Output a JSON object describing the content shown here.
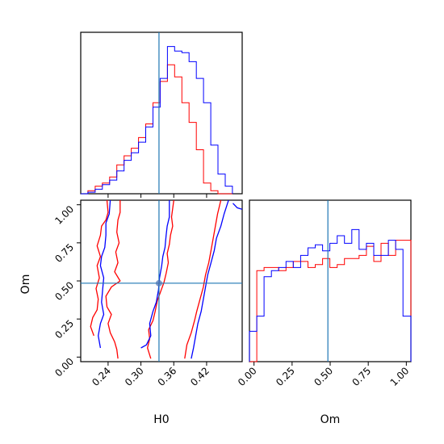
{
  "chart_data": {
    "type": "corner",
    "parameters": [
      "H0",
      "Om"
    ],
    "truth": {
      "H0": 0.333,
      "Om": 0.485
    },
    "colors": {
      "red_series": "#ff0000",
      "blue_series": "#0000ff",
      "truth_line": "#1f77b4",
      "marker": "#4c72b0"
    },
    "axes": {
      "H0": {
        "label": "H0",
        "range": [
          0.19,
          0.485
        ],
        "ticks": [
          0.24,
          0.3,
          0.36,
          0.42
        ],
        "tick_labels": [
          "0.24",
          "0.30",
          "0.36",
          "0.42"
        ]
      },
      "Om": {
        "label": "Om",
        "range": [
          -0.03,
          1.03
        ],
        "ticks": [
          0.0,
          0.25,
          0.5,
          0.75,
          1.0
        ],
        "tick_labels": [
          "0.00",
          "0.25",
          "0.50",
          "0.75",
          "1.00"
        ]
      }
    },
    "hist_H0": {
      "bin_edges": [
        0.19,
        0.2032,
        0.2164,
        0.2296,
        0.2428,
        0.256,
        0.2692,
        0.2824,
        0.2956,
        0.3088,
        0.322,
        0.3352,
        0.3484,
        0.3616,
        0.3748,
        0.388,
        0.4012,
        0.4144,
        0.4276,
        0.4408,
        0.454,
        0.4672
      ],
      "series": [
        {
          "color": "red",
          "counts": [
            0.0,
            0.02,
            0.05,
            0.07,
            0.11,
            0.19,
            0.25,
            0.3,
            0.37,
            0.46,
            0.6,
            0.74,
            0.85,
            0.77,
            0.6,
            0.47,
            0.29,
            0.07,
            0.02,
            0.0,
            0.0
          ]
        },
        {
          "color": "blue",
          "counts": [
            0.0,
            0.01,
            0.03,
            0.06,
            0.09,
            0.15,
            0.22,
            0.27,
            0.34,
            0.44,
            0.57,
            0.76,
            0.97,
            0.94,
            0.93,
            0.87,
            0.76,
            0.6,
            0.32,
            0.13,
            0.05
          ]
        }
      ]
    },
    "hist_Om": {
      "bin_edges": [
        -0.03,
        0.018,
        0.066,
        0.114,
        0.162,
        0.21,
        0.258,
        0.306,
        0.354,
        0.402,
        0.45,
        0.498,
        0.546,
        0.594,
        0.642,
        0.69,
        0.738,
        0.786,
        0.834,
        0.882,
        0.93,
        0.978,
        1.03
      ],
      "series": [
        {
          "color": "red",
          "counts": [
            0.0,
            0.6,
            0.62,
            0.62,
            0.6,
            0.62,
            0.66,
            0.66,
            0.62,
            0.64,
            0.68,
            0.62,
            0.64,
            0.68,
            0.68,
            0.7,
            0.76,
            0.66,
            0.78,
            0.7,
            0.8,
            0.8
          ]
        },
        {
          "color": "blue",
          "counts": [
            0.2,
            0.3,
            0.56,
            0.6,
            0.62,
            0.66,
            0.62,
            0.7,
            0.75,
            0.77,
            0.73,
            0.78,
            0.83,
            0.78,
            0.87,
            0.74,
            0.78,
            0.7,
            0.7,
            0.8,
            0.74,
            0.3
          ]
        }
      ]
    },
    "contours_H0_Om": {
      "red": [
        [
          [
            0.258,
            -0.01
          ],
          [
            0.256,
            0.05
          ],
          [
            0.252,
            0.1
          ],
          [
            0.244,
            0.16
          ],
          [
            0.24,
            0.22
          ],
          [
            0.246,
            0.28
          ],
          [
            0.238,
            0.33
          ],
          [
            0.236,
            0.4
          ],
          [
            0.246,
            0.46
          ],
          [
            0.262,
            0.5
          ],
          [
            0.252,
            0.56
          ],
          [
            0.258,
            0.62
          ],
          [
            0.254,
            0.69
          ],
          [
            0.26,
            0.75
          ],
          [
            0.256,
            0.82
          ],
          [
            0.258,
            0.9
          ],
          [
            0.262,
            0.95
          ],
          [
            0.262,
            1.03
          ]
        ],
        [
          [
            0.318,
            -0.01
          ],
          [
            0.312,
            0.06
          ],
          [
            0.316,
            0.12
          ],
          [
            0.314,
            0.18
          ],
          [
            0.322,
            0.24
          ],
          [
            0.326,
            0.3
          ],
          [
            0.33,
            0.37
          ],
          [
            0.336,
            0.43
          ],
          [
            0.342,
            0.49
          ],
          [
            0.346,
            0.55
          ],
          [
            0.35,
            0.62
          ],
          [
            0.348,
            0.68
          ],
          [
            0.352,
            0.74
          ],
          [
            0.354,
            0.8
          ],
          [
            0.358,
            0.86
          ],
          [
            0.356,
            0.92
          ],
          [
            0.36,
            1.03
          ]
        ],
        [
          [
            0.214,
            0.14
          ],
          [
            0.208,
            0.2
          ],
          [
            0.212,
            0.26
          ],
          [
            0.22,
            0.31
          ],
          [
            0.222,
            0.38
          ],
          [
            0.218,
            0.45
          ],
          [
            0.224,
            0.52
          ],
          [
            0.22,
            0.6
          ],
          [
            0.226,
            0.66
          ],
          [
            0.22,
            0.73
          ],
          [
            0.226,
            0.8
          ],
          [
            0.228,
            0.86
          ],
          [
            0.236,
            0.9
          ],
          [
            0.24,
            0.95
          ],
          [
            0.238,
            1.03
          ]
        ],
        [
          [
            0.38,
            -0.01
          ],
          [
            0.384,
            0.08
          ],
          [
            0.392,
            0.16
          ],
          [
            0.398,
            0.24
          ],
          [
            0.402,
            0.3
          ],
          [
            0.408,
            0.38
          ],
          [
            0.414,
            0.46
          ],
          [
            0.418,
            0.54
          ],
          [
            0.424,
            0.62
          ],
          [
            0.428,
            0.7
          ],
          [
            0.432,
            0.78
          ],
          [
            0.436,
            0.86
          ],
          [
            0.44,
            0.94
          ],
          [
            0.446,
            1.03
          ]
        ]
      ],
      "blue": [
        [
          [
            0.3,
            0.06
          ],
          [
            0.31,
            0.08
          ],
          [
            0.318,
            0.14
          ],
          [
            0.316,
            0.22
          ],
          [
            0.322,
            0.3
          ],
          [
            0.328,
            0.36
          ],
          [
            0.332,
            0.44
          ],
          [
            0.334,
            0.52
          ],
          [
            0.338,
            0.6
          ],
          [
            0.34,
            0.66
          ],
          [
            0.344,
            0.72
          ],
          [
            0.346,
            0.8
          ],
          [
            0.348,
            0.86
          ],
          [
            0.352,
            0.92
          ],
          [
            0.352,
            1.03
          ]
        ],
        [
          [
            0.392,
            -0.01
          ],
          [
            0.396,
            0.06
          ],
          [
            0.4,
            0.14
          ],
          [
            0.404,
            0.22
          ],
          [
            0.41,
            0.3
          ],
          [
            0.414,
            0.38
          ],
          [
            0.418,
            0.46
          ],
          [
            0.422,
            0.54
          ],
          [
            0.428,
            0.62
          ],
          [
            0.434,
            0.7
          ],
          [
            0.438,
            0.78
          ],
          [
            0.446,
            0.86
          ],
          [
            0.452,
            0.94
          ],
          [
            0.46,
            1.03
          ]
        ],
        [
          [
            0.226,
            0.06
          ],
          [
            0.222,
            0.14
          ],
          [
            0.226,
            0.22
          ],
          [
            0.232,
            0.28
          ],
          [
            0.228,
            0.36
          ],
          [
            0.23,
            0.44
          ],
          [
            0.232,
            0.52
          ],
          [
            0.226,
            0.6
          ],
          [
            0.228,
            0.66
          ],
          [
            0.234,
            0.72
          ],
          [
            0.236,
            0.8
          ],
          [
            0.236,
            0.88
          ],
          [
            0.242,
            0.94
          ],
          [
            0.244,
            1.03
          ]
        ],
        [
          [
            0.468,
            1.01
          ],
          [
            0.476,
            0.98
          ],
          [
            0.485,
            0.97
          ]
        ]
      ]
    }
  }
}
